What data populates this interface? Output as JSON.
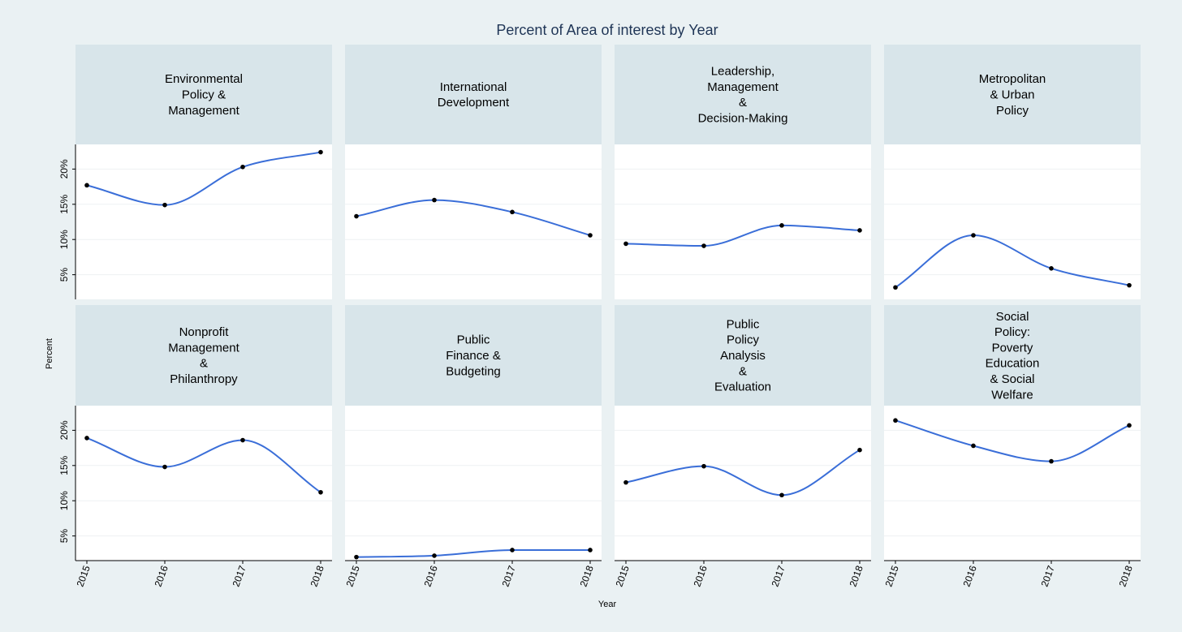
{
  "chart_data": {
    "type": "line",
    "title": "Percent of Area of interest by Year",
    "xlabel": "Year",
    "ylabel": "Percent",
    "x": [
      "2015",
      "2016",
      "2017",
      "2018"
    ],
    "y_ticks": [
      "5%",
      "10%",
      "15%",
      "20%"
    ],
    "ylim": [
      1.5,
      23.5
    ],
    "grid": true,
    "colors": {
      "line": "#3a6ed8",
      "marker": "#000000",
      "strip": "#d8e5ea",
      "panel": "#ffffff",
      "background": "#eaf1f3",
      "title": "#1f3556"
    },
    "panels": [
      {
        "label": [
          "Environmental",
          "Policy &",
          "Management"
        ],
        "values": [
          17.7,
          14.9,
          20.3,
          22.4
        ]
      },
      {
        "label": [
          "International",
          "Development"
        ],
        "values": [
          13.3,
          15.6,
          13.9,
          10.6
        ]
      },
      {
        "label": [
          "Leadership,",
          "Management",
          "&",
          "Decision-Making"
        ],
        "values": [
          9.4,
          9.1,
          12.0,
          11.3
        ]
      },
      {
        "label": [
          "Metropolitan",
          "& Urban",
          "Policy"
        ],
        "values": [
          3.2,
          10.6,
          5.9,
          3.5
        ]
      },
      {
        "label": [
          "Nonprofit",
          "Management",
          "&",
          "Philanthropy"
        ],
        "values": [
          18.9,
          14.8,
          18.6,
          11.2
        ]
      },
      {
        "label": [
          "Public",
          "Finance &",
          "Budgeting"
        ],
        "values": [
          2.0,
          2.2,
          3.0,
          3.0
        ]
      },
      {
        "label": [
          "Public",
          "Policy",
          "Analysis",
          "&",
          "Evaluation"
        ],
        "values": [
          12.6,
          14.9,
          10.8,
          17.2
        ]
      },
      {
        "label": [
          "Social",
          "Policy:",
          "Poverty",
          "Education",
          "& Social",
          "Welfare"
        ],
        "values": [
          21.4,
          17.8,
          15.6,
          20.7
        ]
      }
    ]
  }
}
